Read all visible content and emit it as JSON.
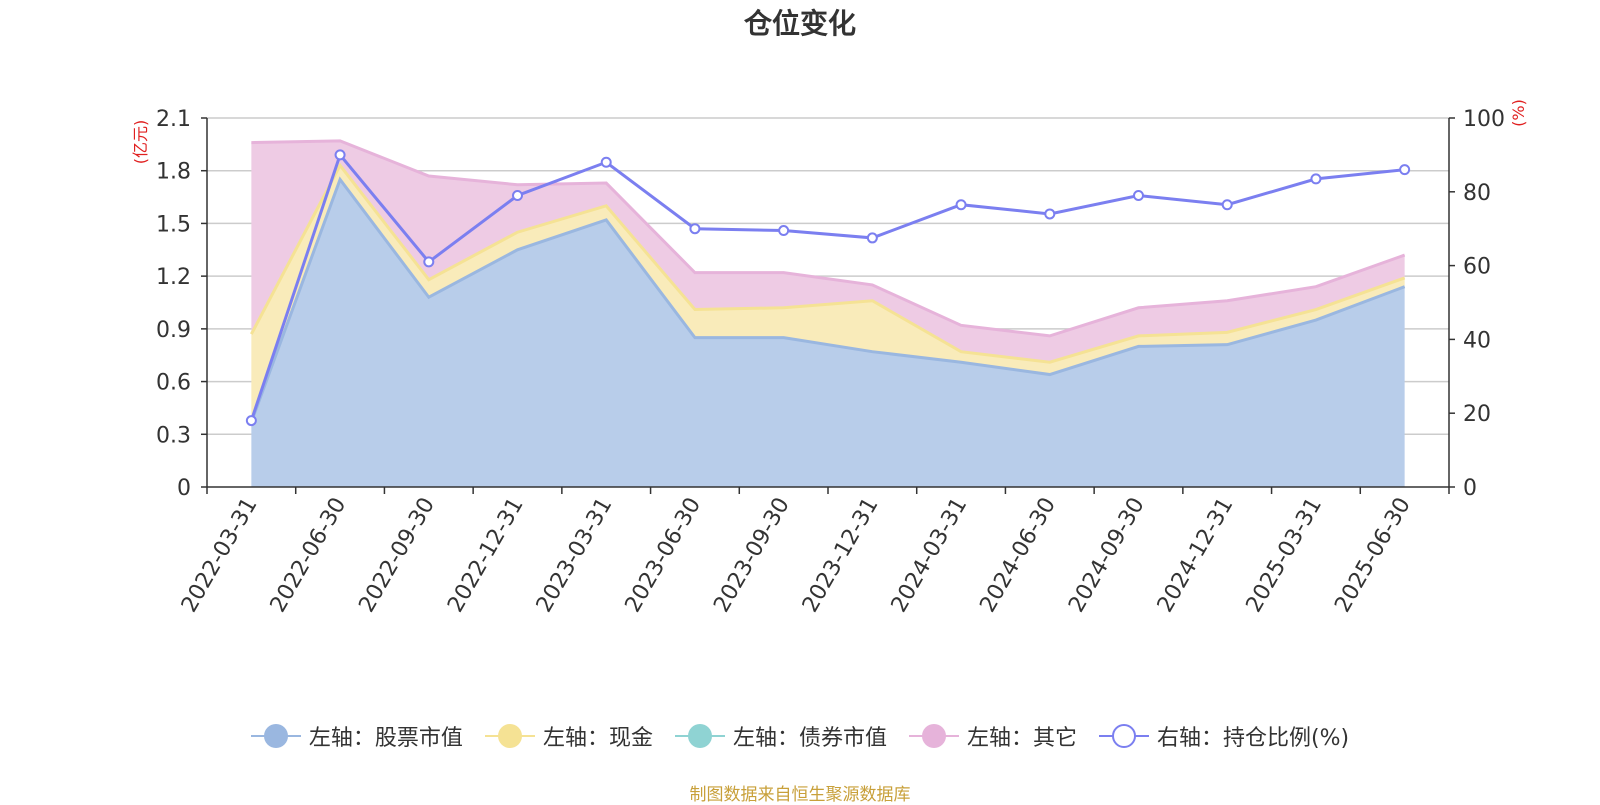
{
  "title": "仓位变化",
  "source": "制图数据来自恒生聚源数据库",
  "left_axis_unit": "(亿元)",
  "right_axis_unit": "(%)",
  "colors": {
    "stock": "#9ab7e0",
    "stock_fill": "#b8cdea",
    "cash": "#f5e294",
    "cash_fill": "#f9ebba",
    "bond": "#8fd3d3",
    "other": "#e6b3da",
    "other_fill": "#eecbe4",
    "ratio": "#7b7ff0",
    "axis_unit": "#e02020",
    "grid": "#cccccc",
    "axis": "#333333",
    "source": "#c8a03a"
  },
  "legend": [
    {
      "key": "stock",
      "label": "左轴：股票市值",
      "icon": "filled-circle"
    },
    {
      "key": "cash",
      "label": "左轴：现金",
      "icon": "filled-circle"
    },
    {
      "key": "bond",
      "label": "左轴：债券市值",
      "icon": "filled-circle"
    },
    {
      "key": "other",
      "label": "左轴：其它",
      "icon": "filled-circle"
    },
    {
      "key": "ratio",
      "label": "右轴：持仓比例(%)",
      "icon": "hollow-circle"
    }
  ],
  "chart_data": {
    "type": "area",
    "stacked": true,
    "categories": [
      "2022-03-31",
      "2022-06-30",
      "2022-09-30",
      "2022-12-31",
      "2023-03-31",
      "2023-06-30",
      "2023-09-30",
      "2023-12-31",
      "2024-03-31",
      "2024-06-30",
      "2024-09-30",
      "2024-12-31",
      "2025-03-31",
      "2025-06-30"
    ],
    "left_axis": {
      "unit": "亿元",
      "ylim": [
        0,
        2.1
      ],
      "ticks": [
        "0",
        "0.3",
        "0.6",
        "0.9",
        "1.2",
        "1.5",
        "1.8",
        "2.1"
      ]
    },
    "right_axis": {
      "unit": "%",
      "ylim": [
        0,
        100
      ],
      "ticks": [
        "0",
        "20",
        "40",
        "60",
        "80",
        "100"
      ]
    },
    "grid": true,
    "legend_position": "bottom",
    "series": [
      {
        "name": "左轴：股票市值",
        "axis": "left",
        "type": "area",
        "values": [
          0.37,
          1.75,
          1.08,
          1.35,
          1.52,
          0.85,
          0.85,
          0.77,
          0.71,
          0.64,
          0.8,
          0.81,
          0.95,
          1.14
        ]
      },
      {
        "name": "左轴：现金",
        "axis": "left",
        "type": "area",
        "values": [
          0.5,
          0.08,
          0.1,
          0.1,
          0.08,
          0.16,
          0.17,
          0.29,
          0.06,
          0.07,
          0.06,
          0.07,
          0.06,
          0.05
        ]
      },
      {
        "name": "左轴：债券市值",
        "axis": "left",
        "type": "area",
        "values": [
          0,
          0,
          0,
          0,
          0,
          0,
          0,
          0,
          0,
          0,
          0,
          0,
          0,
          0
        ]
      },
      {
        "name": "左轴：其它",
        "axis": "left",
        "type": "area",
        "values": [
          1.09,
          0.14,
          0.59,
          0.27,
          0.13,
          0.21,
          0.2,
          0.09,
          0.15,
          0.15,
          0.16,
          0.18,
          0.13,
          0.13
        ]
      },
      {
        "name": "右轴：持仓比例(%)",
        "axis": "right",
        "type": "line",
        "values": [
          18,
          90,
          61,
          79,
          88,
          70,
          69.5,
          67.5,
          76.5,
          74,
          79,
          76.5,
          83.5,
          86
        ]
      }
    ]
  }
}
